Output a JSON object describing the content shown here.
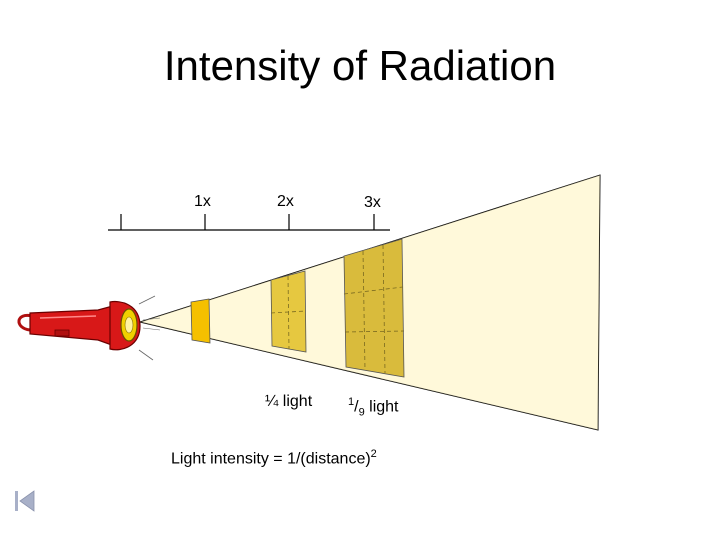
{
  "title": "Intensity of Radiation",
  "scale_labels": [
    "1x",
    "2x",
    "3x"
  ],
  "quarter_light": "¼ light",
  "ninth_light": {
    "numerator": "1",
    "slash": "/",
    "denominator": "9",
    "suffix": " light"
  },
  "formula": {
    "text": "Light intensity = 1/(distance)",
    "exponent": "2"
  },
  "colors": {
    "beam_outer": "#fffbe0",
    "beam_inner": "#fff5c0",
    "panel_1x": "#f5c000",
    "panel_2x": "#e6c840",
    "panel_3x": "#d9bb3c",
    "flashlight_body": "#d81818",
    "flashlight_lens": "#f0d000"
  },
  "nav": {
    "back_icon": "back-to-start-icon"
  }
}
